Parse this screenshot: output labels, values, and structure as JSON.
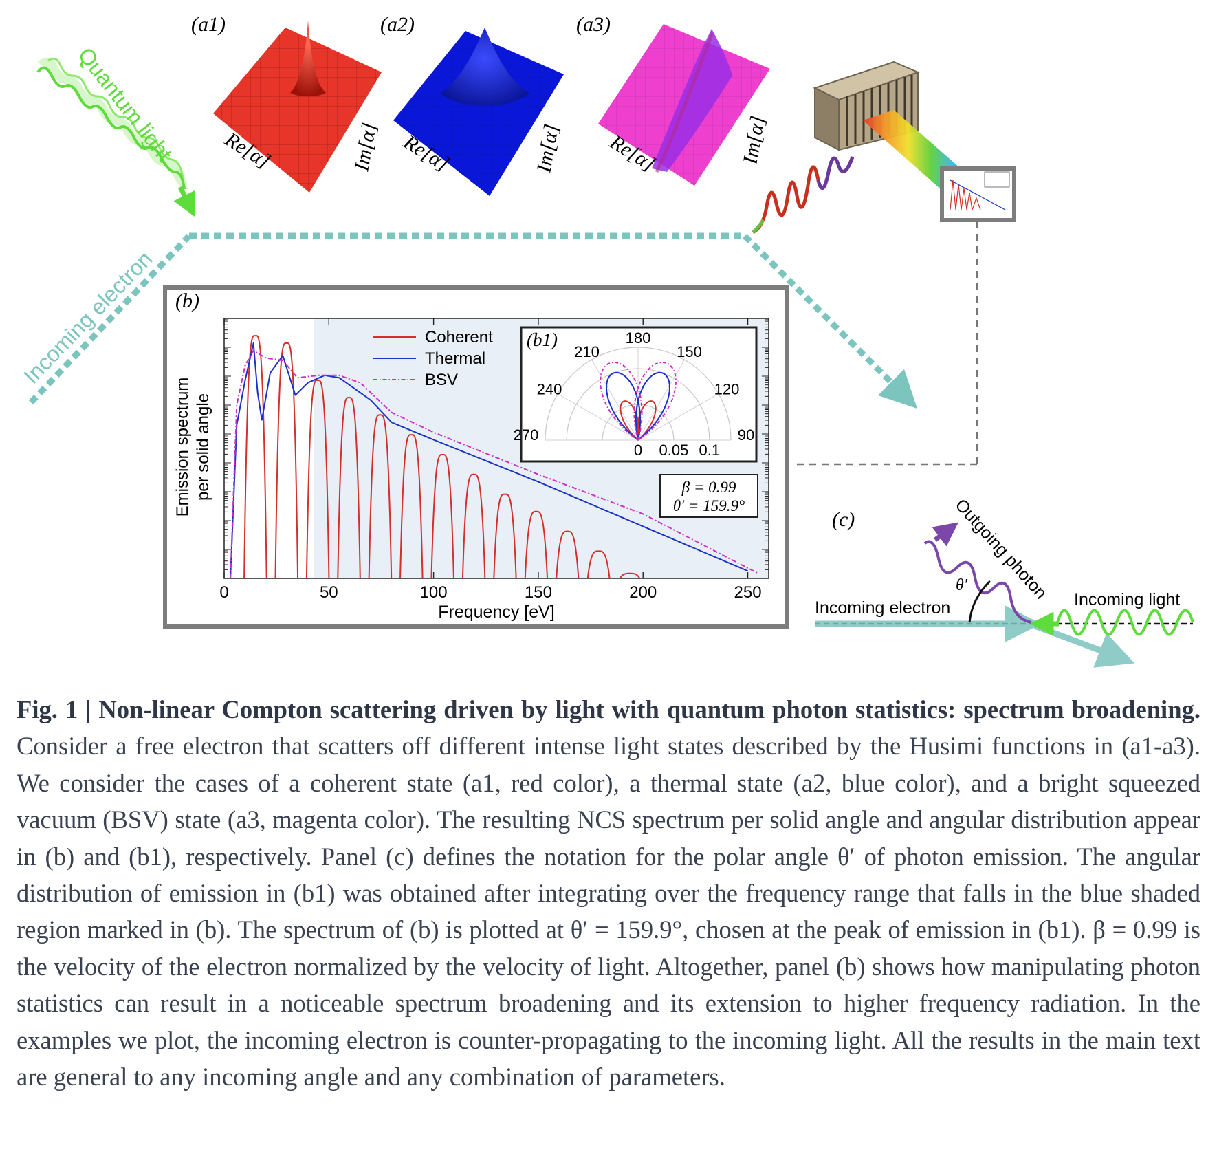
{
  "panels": {
    "a1": "(a1)",
    "a2": "(a2)",
    "a3": "(a3)",
    "b": "(b)",
    "b1": "(b1)",
    "c": "(c)"
  },
  "husimi_axis_labels": {
    "re": "Re[α]",
    "im": "Im[α]"
  },
  "husimi_colors": {
    "coherent": "#e8352a",
    "thermal": "#0a17d8",
    "bsv": "#ee3fcf"
  },
  "schematic": {
    "quantum_light": "Quantum light",
    "incoming_electron": "Incoming electron",
    "outgoing_photon": "Outgoing photon",
    "incoming_light": "Incoming light",
    "theta_prime": "θ′"
  },
  "chart_data": [
    {
      "type": "line",
      "xlabel": "Frequency [eV]",
      "ylabel": [
        "Emission spectrum",
        "per solid angle"
      ],
      "xlim": [
        0,
        260
      ],
      "x_ticks": [
        0,
        50,
        100,
        150,
        200,
        250
      ],
      "yscale": "log",
      "shaded_region_x": [
        43,
        260
      ],
      "legend": {
        "placement": "top-center"
      },
      "annotation": [
        "β = 0.99",
        "θ′ = 159.9°"
      ],
      "series": [
        {
          "name": "Coherent",
          "color": "#d4302b",
          "style": "solid",
          "harmonic_spacing": 14.9,
          "peak_x": [
            14.9,
            29.8,
            44.7,
            59.6,
            74.5,
            89.4,
            104.3,
            119.2,
            134.1,
            149.0,
            163.9,
            178.8,
            193.7
          ],
          "peak_level": [
            0.98,
            0.95,
            0.8,
            0.73,
            0.66,
            0.58,
            0.5,
            0.42,
            0.34,
            0.27,
            0.19,
            0.11,
            0.02
          ]
        },
        {
          "name": "Thermal",
          "color": "#1a32c8",
          "style": "solid",
          "x": [
            3,
            6,
            10,
            14,
            16,
            18,
            22,
            28,
            31,
            34,
            40,
            48,
            55,
            60,
            70,
            80,
            100,
            150,
            200,
            250
          ],
          "level": [
            0.0,
            0.62,
            0.8,
            0.95,
            0.75,
            0.64,
            0.83,
            0.9,
            0.82,
            0.74,
            0.79,
            0.82,
            0.81,
            0.78,
            0.72,
            0.63,
            0.56,
            0.39,
            0.21,
            0.03
          ]
        },
        {
          "name": "BSV",
          "color": "#cc2cc8",
          "style": "dash-dot",
          "x": [
            3,
            6,
            10,
            14,
            20,
            28,
            35,
            45,
            55,
            65,
            80,
            100,
            150,
            200,
            255
          ],
          "level": [
            0.0,
            0.7,
            0.86,
            0.92,
            0.89,
            0.88,
            0.81,
            0.82,
            0.82,
            0.79,
            0.67,
            0.59,
            0.42,
            0.26,
            0.02
          ]
        }
      ]
    },
    {
      "type": "polar",
      "theta_ticks": [
        90,
        120,
        150,
        180,
        210,
        240,
        270
      ],
      "r_ticks": [
        0,
        0.05,
        0.1
      ],
      "rlim": [
        0,
        0.13
      ],
      "series": [
        {
          "name": "Coherent",
          "lobe_angle": 159.9,
          "rmax": 0.058
        },
        {
          "name": "Thermal",
          "lobe_angle": 159.9,
          "rmax": 0.1
        },
        {
          "name": "BSV",
          "lobe_angle": 159.9,
          "rmax": 0.115
        }
      ]
    }
  ],
  "caption": {
    "title": "Fig. 1 | Non-linear Compton scattering driven by light with quantum photon statistics: spectrum broadening.",
    "body": "Consider a free electron that scatters off different intense light states described by the Husimi functions in (a1-a3). We consider the cases of a coherent state (a1, red color), a thermal state (a2, blue color), and a bright squeezed vacuum (BSV) state (a3, magenta color). The resulting NCS spectrum per solid angle and angular distribution appear in (b) and (b1), respectively. Panel (c) defines the notation for the polar angle θ′ of photon emission. The angular distribution of emission in (b1) was obtained after integrating over the frequency range that falls in the blue shaded region marked in (b). The spectrum of (b) is plotted at θ′ = 159.9°, chosen at the peak of emission in (b1). β = 0.99 is the velocity of the electron normalized by the velocity of light. Altogether, panel (b) shows how manipulating photon statistics can result in a noticeable spectrum broadening and its extension to higher frequency radiation. In the examples we plot, the incoming electron is counter-propagating to the incoming light. All the results in the main text are general to any incoming angle and any combination of parameters."
  }
}
